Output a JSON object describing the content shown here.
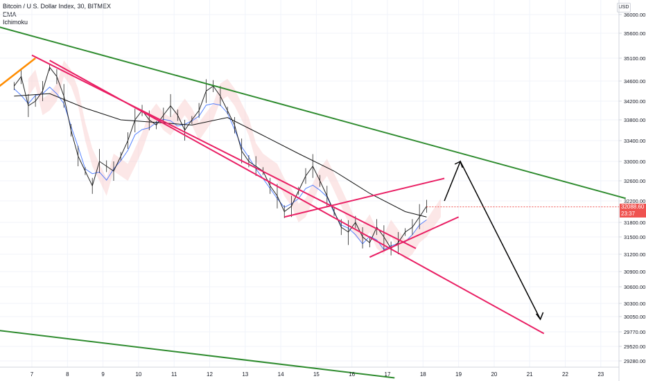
{
  "header": {
    "symbol_line": "Bitcoin / U.S. Dollar Index, 30, BITMEX",
    "indicator_1": "EMA",
    "indicator_2": "Ichimoku"
  },
  "currency_button": "USD",
  "price_tag": {
    "price": "32088.60",
    "countdown": "23:37"
  },
  "colors": {
    "channel": "#e91e63",
    "trend": "#2e8b2e",
    "orange": "#ff8c00",
    "price": "#222222",
    "ema": "#111111",
    "kijun": "#2962ff",
    "cloud": "#f8c9c9",
    "cloud_green": "#cfe9cf",
    "arrow": "#000000",
    "tag": "#ef5350"
  },
  "chart_data": {
    "type": "line",
    "title": "Bitcoin / U.S. Dollar Index, 30, BITMEX",
    "x_ticks": [
      "7",
      "8",
      "9",
      "10",
      "11",
      "12",
      "13",
      "14",
      "15",
      "16",
      "17",
      "18",
      "19",
      "20",
      "21",
      "22",
      "23"
    ],
    "y_ticks": [
      "36000.00",
      "35600.00",
      "35100.00",
      "34600.00",
      "34200.00",
      "33800.00",
      "33400.00",
      "33000.00",
      "32600.00",
      "32200.00",
      "31800.00",
      "31500.00",
      "31200.00",
      "30900.00",
      "30600.00",
      "30300.00",
      "30050.00",
      "29770.00",
      "29520.00",
      "29280.00"
    ],
    "last_price": 32088.6,
    "series": [
      {
        "name": "price",
        "x": [
          6.5,
          6.7,
          6.9,
          7.1,
          7.3,
          7.5,
          7.7,
          7.9,
          8.1,
          8.3,
          8.5,
          8.7,
          8.9,
          9.1,
          9.3,
          9.5,
          9.7,
          9.9,
          10.1,
          10.3,
          10.5,
          10.7,
          10.9,
          11.1,
          11.3,
          11.5,
          11.7,
          11.9,
          12.1,
          12.3,
          12.5,
          12.7,
          12.9,
          13.1,
          13.3,
          13.5,
          13.7,
          13.9,
          14.1,
          14.3,
          14.5,
          14.7,
          14.9,
          15.1,
          15.3,
          15.5,
          15.7,
          15.9,
          16.1,
          16.3,
          16.5,
          16.7,
          16.9,
          17.1,
          17.3,
          17.5,
          17.7,
          17.9,
          18.1
        ],
        "y": [
          34500,
          34700,
          34100,
          34200,
          34400,
          34900,
          34700,
          34300,
          33600,
          33100,
          32800,
          32500,
          33000,
          32900,
          32800,
          33100,
          33400,
          33800,
          34000,
          33800,
          33700,
          33900,
          34100,
          33900,
          33600,
          33800,
          34000,
          34400,
          34500,
          34300,
          34000,
          33700,
          33200,
          33000,
          32900,
          32800,
          32500,
          32300,
          32000,
          32100,
          32400,
          32700,
          32900,
          32600,
          32300,
          32000,
          31700,
          31600,
          31800,
          31500,
          31400,
          31700,
          31500,
          31300,
          31400,
          31600,
          31700,
          31900,
          32100
        ]
      },
      {
        "name": "ema",
        "x": [
          6.5,
          7.5,
          8.5,
          9.5,
          10.5,
          11.5,
          12.5,
          13.5,
          14.5,
          15.5,
          16.5,
          17.5,
          18.1
        ],
        "y": [
          34300,
          34350,
          34050,
          33800,
          33750,
          33700,
          33850,
          33500,
          33150,
          32800,
          32350,
          32000,
          31900
        ]
      }
    ],
    "annotations": [
      {
        "name": "upper-trendline",
        "x": [
          6.0,
          23.7
        ],
        "y": [
          35750,
          32250
        ]
      },
      {
        "name": "lower-trendline",
        "x": [
          6.0,
          17.2
        ],
        "y": [
          29800,
          29000
        ]
      },
      {
        "name": "channel-upper",
        "x": [
          7.0,
          17.8
        ],
        "y": [
          35160,
          31300
        ]
      },
      {
        "name": "channel-lower",
        "x": [
          7.5,
          21.4
        ],
        "y": [
          35050,
          29740
        ]
      },
      {
        "name": "rising-wedge-upper",
        "x": [
          14.1,
          18.6
        ],
        "y": [
          31900,
          32650
        ]
      },
      {
        "name": "rising-wedge-lower",
        "x": [
          16.5,
          19.0
        ],
        "y": [
          31150,
          31900
        ]
      },
      {
        "name": "orange-segment",
        "x": [
          6.0,
          7.1
        ],
        "y": [
          34450,
          35100
        ]
      },
      {
        "name": "projection-arrow",
        "x": [
          18.6,
          19.05,
          21.3
        ],
        "y": [
          32200,
          33000,
          30000
        ]
      }
    ],
    "legend": "top-left",
    "grid": true
  }
}
